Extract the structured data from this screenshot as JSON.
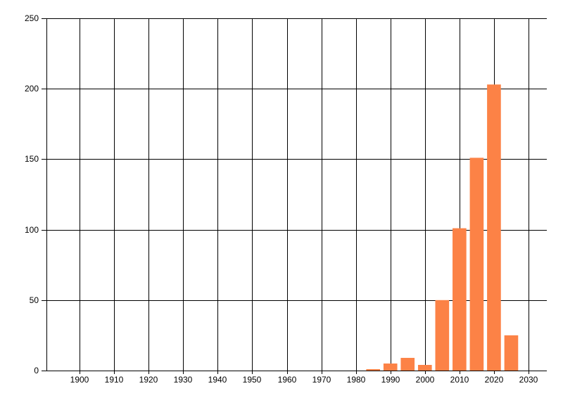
{
  "chart_data": {
    "type": "bar",
    "x": [
      1985,
      1990,
      1995,
      2000,
      2005,
      2010,
      2015,
      2020,
      2025
    ],
    "values": [
      1,
      5,
      9,
      4,
      50,
      101,
      151,
      203,
      25
    ],
    "x_ticks": [
      1900,
      1910,
      1920,
      1930,
      1940,
      1950,
      1960,
      1970,
      1980,
      1990,
      2000,
      2010,
      2020,
      2030
    ],
    "y_ticks": [
      0,
      50,
      100,
      150,
      200,
      250
    ],
    "xlim": [
      1890.4,
      2035.3
    ],
    "ylim": [
      0,
      250
    ],
    "bar_width_x_units": 4,
    "grid": true,
    "legend": false,
    "colors": {
      "bar": "#fc8246",
      "grid": "#000000",
      "axis": "#000000",
      "text": "#000000",
      "background": "#ffffff"
    }
  }
}
